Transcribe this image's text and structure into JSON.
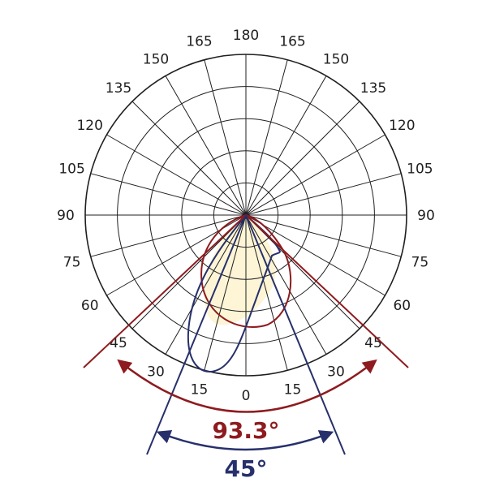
{
  "diagram": {
    "type": "polar-light-distribution",
    "radial_rings": 5,
    "spoke_step_deg": 15,
    "angle_labels_left": [
      "180",
      "165",
      "150",
      "135",
      "120",
      "105",
      "90",
      "75",
      "60",
      "45",
      "30",
      "15",
      "0"
    ],
    "angle_labels_right": [
      "165",
      "150",
      "135",
      "120",
      "105",
      "90",
      "75",
      "60",
      "45",
      "30",
      "15"
    ],
    "beam_angles": {
      "wide": {
        "label": "93.3°",
        "value_deg": 93.3,
        "color": "#8e1b1f"
      },
      "narrow": {
        "label": "45°",
        "value_deg": 45,
        "color": "#27306b"
      }
    },
    "colors": {
      "grid": "#1f1f1f",
      "fill": "#fdf5d6",
      "red_curve": "#8e1b1f",
      "blue_curve": "#27306b"
    }
  }
}
